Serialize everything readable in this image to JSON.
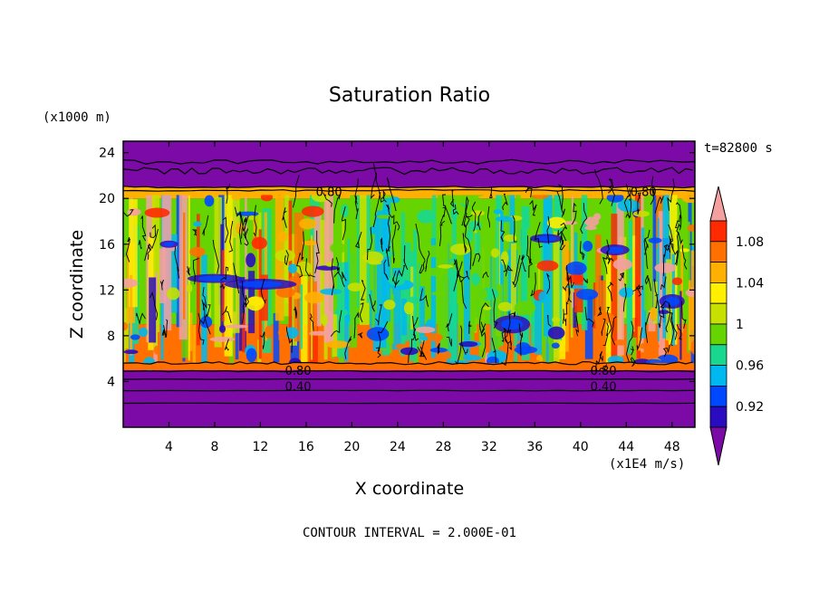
{
  "chart_data": {
    "type": "heatmap",
    "title": "Saturation Ratio",
    "xlabel": "X coordinate",
    "ylabel": "Z coordinate",
    "x_unit": "(x1E4 m/s)",
    "y_unit": "(x1000 m)",
    "time_label": "t=82800 s",
    "footer": "CONTOUR INTERVAL = 2.000E-01",
    "xlim": [
      0,
      50
    ],
    "ylim": [
      0,
      25
    ],
    "x_ticks": [
      "4",
      "8",
      "12",
      "16",
      "20",
      "24",
      "28",
      "32",
      "36",
      "40",
      "44",
      "48"
    ],
    "y_ticks": [
      "4",
      "8",
      "12",
      "16",
      "20",
      "24"
    ],
    "contour_labels": [
      "0.80",
      "0.80",
      "0.80",
      "0.80",
      "0.40",
      "0.40"
    ],
    "colorbar": {
      "labels": [
        "1.08",
        "1.04",
        "1",
        "0.96",
        "0.92"
      ],
      "colors": [
        "#7b0aa6",
        "#2a0cc0",
        "#0048ff",
        "#00b8f0",
        "#18d890",
        "#66d400",
        "#c8e000",
        "#fff000",
        "#ffb000",
        "#ff7000",
        "#ff2a00",
        "#f4a0a0"
      ],
      "extend": "both"
    },
    "layers": [
      {
        "z_range": [
          0,
          5
        ],
        "value": "< 0.90",
        "color": "#7b0aa6"
      },
      {
        "z_range": [
          5,
          9
        ],
        "value": "0.90 - 1.10 (mixed)",
        "color": "#ff7000"
      },
      {
        "z_range": [
          9,
          20
        ],
        "value": "0.94 - 1.06 (mixed)",
        "color": "#66d400"
      },
      {
        "z_range": [
          20,
          21
        ],
        "value": "1.02 - 1.10",
        "color": "#ffb000"
      },
      {
        "z_range": [
          21,
          25
        ],
        "value": "< 0.90",
        "color": "#7b0aa6"
      }
    ]
  }
}
